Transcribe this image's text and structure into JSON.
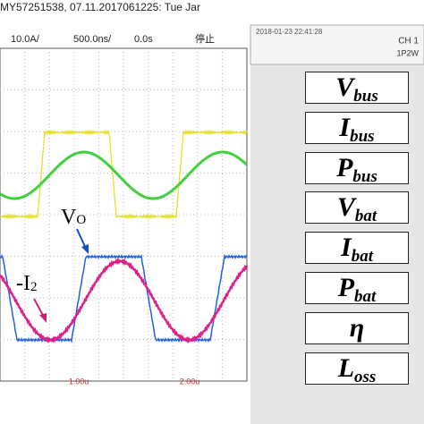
{
  "header": {
    "title": "MY57251538, 07.11.2017061225: Tue Jar",
    "scale": "10.0A/",
    "timebase": "500.0ns/",
    "delay": "0.0s",
    "status": "停止"
  },
  "panel": {
    "timestamp": "2018-01-23 22:41:28",
    "channel": "CH 1",
    "wiring": "1P2W"
  },
  "annotations": {
    "vo": {
      "main": "V",
      "sub": "O"
    },
    "i2": {
      "main": "-I",
      "sub": "2"
    }
  },
  "time_labels": [
    "1.00u",
    "2.00u"
  ],
  "labels": [
    {
      "main": "V",
      "sub": "bus"
    },
    {
      "main": "I",
      "sub": "bus"
    },
    {
      "main": "P",
      "sub": "bus"
    },
    {
      "main": "V",
      "sub": "bat"
    },
    {
      "main": "I",
      "sub": "bat"
    },
    {
      "main": "P",
      "sub": "bat"
    },
    {
      "main": "η",
      "sub": ""
    },
    {
      "main": "L",
      "sub": "oss"
    }
  ]
}
